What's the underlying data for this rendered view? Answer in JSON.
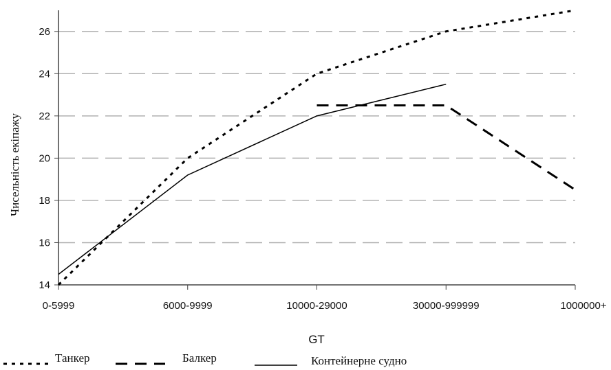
{
  "chart_data": {
    "type": "line",
    "categories": [
      "0-5999",
      "6000-9999",
      "10000-29000",
      "30000-999999",
      "1000000+"
    ],
    "xlabel": "GT",
    "ylabel": "Чисельність екіпажу",
    "ylim": [
      14,
      27
    ],
    "yticks": [
      14,
      16,
      18,
      20,
      22,
      24,
      26
    ],
    "grid": "horizontal dashed",
    "legend_position": "bottom-left",
    "series": [
      {
        "name": "Танкер",
        "style": "dotted",
        "color": "#000000",
        "values": [
          14.0,
          20.0,
          24.0,
          26.0,
          27.0
        ]
      },
      {
        "name": "Балкер",
        "style": "dashed",
        "color": "#000000",
        "values": [
          null,
          null,
          22.5,
          22.5,
          18.5
        ]
      },
      {
        "name": "Контейнерне судно",
        "style": "solid",
        "color": "#000000",
        "values": [
          14.5,
          19.2,
          22.0,
          23.5,
          null
        ]
      }
    ]
  }
}
